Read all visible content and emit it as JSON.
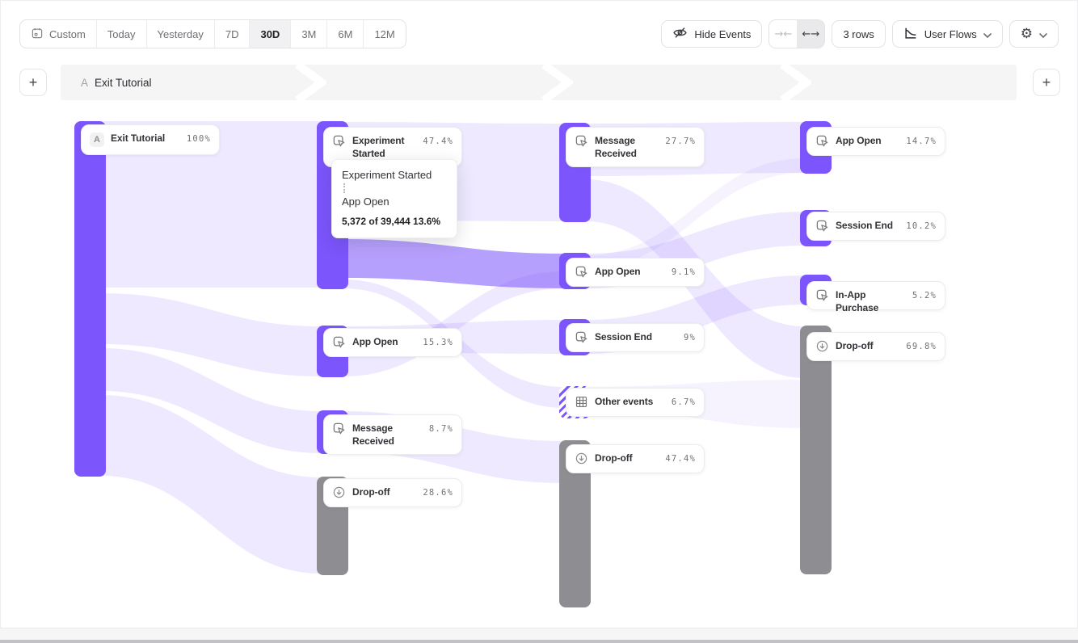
{
  "toolbar": {
    "date_ranges": [
      {
        "label": "Custom",
        "icon": "calendar-icon",
        "active": false
      },
      {
        "label": "Today",
        "active": false
      },
      {
        "label": "Yesterday",
        "active": false
      },
      {
        "label": "7D",
        "active": false
      },
      {
        "label": "30D",
        "active": true
      },
      {
        "label": "3M",
        "active": false
      },
      {
        "label": "6M",
        "active": false
      },
      {
        "label": "12M",
        "active": false
      }
    ],
    "hide_events_label": "Hide Events",
    "rows_label": "3 rows",
    "view_label": "User Flows"
  },
  "icons": {
    "collapse": "→←",
    "expand": "←→",
    "gear": "⚙",
    "add": "+"
  },
  "header": {
    "step_letter": "A",
    "step_label": "Exit Tutorial"
  },
  "tooltip": {
    "source": "Experiment Started",
    "target": "App Open",
    "stat": "5,372 of 39,444 13.6%"
  },
  "chart_data": {
    "type": "sankey",
    "columns": 4,
    "colors": {
      "event": "#7C55FC",
      "dropoff": "#8E8E92",
      "link_light": "rgba(124,85,252,0.13)",
      "link_highlight": "rgba(124,85,252,0.56)",
      "link_faint": "rgba(124,85,252,0.07)"
    },
    "nodes": [
      {
        "id": "exit-tutorial",
        "col": 0,
        "label": "Exit Tutorial",
        "pct": "100%",
        "kind": "start",
        "badge": "A",
        "bar": [
          92,
          150,
          39,
          440
        ],
        "card": [
          100,
          154,
          172,
          38
        ]
      },
      {
        "id": "experiment-started-1",
        "col": 1,
        "label": "Experiment Started",
        "pct": "47.4%",
        "kind": "event",
        "bar": [
          392,
          150,
          39,
          208
        ],
        "card": [
          400,
          157,
          172,
          50
        ]
      },
      {
        "id": "app-open-1",
        "col": 1,
        "label": "App Open",
        "pct": "15.3%",
        "kind": "event",
        "bar": [
          392,
          403,
          39,
          64
        ],
        "card": [
          400,
          406,
          172,
          36
        ]
      },
      {
        "id": "message-received-1",
        "col": 1,
        "label": "Message Received",
        "pct": "8.7%",
        "kind": "event",
        "bar": [
          392,
          508,
          39,
          54
        ],
        "card": [
          400,
          513,
          172,
          50
        ]
      },
      {
        "id": "drop-off-1",
        "col": 1,
        "label": "Drop-off",
        "pct": "28.6%",
        "kind": "dropoff",
        "bar": [
          392,
          590,
          39,
          122
        ],
        "card": [
          400,
          592,
          172,
          36
        ]
      },
      {
        "id": "message-received-2",
        "col": 2,
        "label": "Message Received",
        "pct": "27.7%",
        "kind": "event",
        "bar": [
          692,
          152,
          39,
          123
        ],
        "card": [
          700,
          157,
          172,
          50
        ]
      },
      {
        "id": "app-open-2",
        "col": 2,
        "label": "App Open",
        "pct": "9.1%",
        "kind": "event",
        "bar": [
          692,
          313,
          39,
          45
        ],
        "card": [
          700,
          319,
          172,
          36
        ]
      },
      {
        "id": "session-end-2",
        "col": 2,
        "label": "Session End",
        "pct": "9%",
        "kind": "event",
        "bar": [
          692,
          395,
          39,
          45
        ],
        "card": [
          700,
          400,
          172,
          36
        ]
      },
      {
        "id": "other-events-2",
        "col": 2,
        "label": "Other events",
        "pct": "6.7%",
        "kind": "other",
        "bar": [
          692,
          478,
          39,
          40
        ],
        "card": [
          700,
          480,
          172,
          36
        ]
      },
      {
        "id": "drop-off-2",
        "col": 2,
        "label": "Drop-off",
        "pct": "47.4%",
        "kind": "dropoff",
        "bar": [
          692,
          545,
          39,
          207
        ],
        "card": [
          700,
          550,
          172,
          36
        ]
      },
      {
        "id": "app-open-3",
        "col": 3,
        "label": "App Open",
        "pct": "14.7%",
        "kind": "event",
        "bar": [
          990,
          150,
          39,
          65
        ],
        "card": [
          998,
          157,
          172,
          36
        ]
      },
      {
        "id": "session-end-3",
        "col": 3,
        "label": "Session End",
        "pct": "10.2%",
        "kind": "event",
        "bar": [
          990,
          260,
          39,
          45
        ],
        "card": [
          998,
          262,
          172,
          36
        ]
      },
      {
        "id": "in-app-purchase-3",
        "col": 3,
        "label": "In-App Purchase",
        "pct": "5.2%",
        "kind": "event",
        "bar": [
          990,
          340,
          39,
          38
        ],
        "card": [
          998,
          348,
          172,
          36
        ]
      },
      {
        "id": "drop-off-3",
        "col": 3,
        "label": "Drop-off",
        "pct": "69.8%",
        "kind": "dropoff",
        "bar": [
          990,
          403,
          39,
          308
        ],
        "card": [
          998,
          411,
          172,
          36
        ]
      }
    ],
    "links": [
      {
        "from": "Exit Tutorial",
        "to": "Experiment Started",
        "col": 0,
        "s": [
          150,
          356
        ],
        "d": [
          150,
          356
        ],
        "k": "light"
      },
      {
        "from": "Exit Tutorial",
        "to": "App Open",
        "col": 0,
        "s": [
          363,
          426
        ],
        "d": [
          404,
          466
        ],
        "k": "light"
      },
      {
        "from": "Exit Tutorial",
        "to": "Message Received",
        "col": 0,
        "s": [
          431,
          484
        ],
        "d": [
          509,
          561
        ],
        "k": "light"
      },
      {
        "from": "Exit Tutorial",
        "to": "Drop-off",
        "col": 0,
        "s": [
          489,
          589
        ],
        "d": [
          591,
          710
        ],
        "k": "light"
      },
      {
        "from": "Experiment Started",
        "to": "Message Received",
        "col": 1,
        "s": [
          151,
          273
        ],
        "d": [
          153,
          274
        ],
        "k": "light"
      },
      {
        "from": "Experiment Started",
        "to": "App Open",
        "col": 1,
        "s": [
          296,
          344
        ],
        "d": [
          314,
          357
        ],
        "k": "highlight",
        "value": "5,372 of 39,444",
        "pct": "13.6%"
      },
      {
        "from": "Experiment Started",
        "to": "Other events",
        "col": 1,
        "s": [
          346,
          357
        ],
        "d": [
          479,
          505
        ],
        "k": "light"
      },
      {
        "from": "App Open",
        "to": "Session End",
        "col": 1,
        "s": [
          404,
          436
        ],
        "d": [
          396,
          438
        ],
        "k": "light"
      },
      {
        "from": "App Open",
        "to": "App Open",
        "col": 1,
        "s": [
          440,
          466
        ],
        "d": [
          336,
          357
        ],
        "k": "light"
      },
      {
        "from": "Message Received",
        "to": "Drop-off",
        "col": 1,
        "s": [
          509,
          560
        ],
        "d": [
          546,
          598
        ],
        "k": "light"
      },
      {
        "from": "Message Received",
        "to": "App Open",
        "col": 2,
        "s": [
          153,
          218
        ],
        "d": [
          151,
          214
        ],
        "k": "light"
      },
      {
        "from": "Message Received",
        "to": "Drop-off",
        "col": 2,
        "s": [
          222,
          274
        ],
        "d": [
          404,
          468
        ],
        "k": "light"
      },
      {
        "from": "App Open",
        "to": "Session End",
        "col": 2,
        "s": [
          314,
          357
        ],
        "d": [
          262,
          304
        ],
        "k": "light"
      },
      {
        "from": "Session End",
        "to": "In-App Purchase",
        "col": 2,
        "s": [
          396,
          438
        ],
        "d": [
          341,
          377
        ],
        "k": "light"
      },
      {
        "from": "Other events",
        "to": "Drop-off",
        "col": 2,
        "s": [
          479,
          505
        ],
        "d": [
          470,
          530
        ],
        "k": "faint"
      },
      {
        "from": "App Open",
        "to": "App Open",
        "col": 2,
        "s": [
          316,
          332
        ],
        "d": [
          196,
          214
        ],
        "k": "faint"
      }
    ],
    "column_right_edges": [
      131,
      431,
      731
    ],
    "column_left_edges": [
      392,
      692,
      990
    ]
  }
}
